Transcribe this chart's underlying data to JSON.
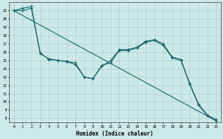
{
  "xlabel": "Humidex (Indice chaleur)",
  "x_ticks": [
    0,
    1,
    2,
    3,
    4,
    5,
    6,
    7,
    8,
    9,
    10,
    11,
    12,
    13,
    14,
    15,
    16,
    17,
    18,
    19,
    20,
    21,
    22,
    23
  ],
  "ylim": [
    7.5,
    22.0
  ],
  "xlim": [
    -0.5,
    23.5
  ],
  "yticks": [
    8,
    9,
    10,
    11,
    12,
    13,
    14,
    15,
    16,
    17,
    18,
    19,
    20,
    21
  ],
  "bg_color": "#cce8e8",
  "grid_color": "#b0cccc",
  "line_color": "#1a6b6b",
  "line1_x": [
    0,
    23
  ],
  "line1_y": [
    21.0,
    7.7
  ],
  "line2_x": [
    0,
    1,
    2,
    3,
    4,
    5,
    6,
    7,
    8,
    9,
    10,
    11,
    12,
    13,
    14,
    15,
    16,
    17,
    18,
    19,
    20,
    21,
    22,
    23
  ],
  "line2_y": [
    21.0,
    21.3,
    21.5,
    15.8,
    15.2,
    15.0,
    14.9,
    14.7,
    13.0,
    12.8,
    14.4,
    14.7,
    16.2,
    16.2,
    16.5,
    17.2,
    17.4,
    16.8,
    15.3,
    15.0,
    12.1,
    9.6,
    8.3,
    7.7
  ],
  "line3_x": [
    0,
    1,
    2,
    3,
    4,
    5,
    6,
    7,
    8,
    9,
    10,
    11,
    12,
    13,
    14,
    15,
    16,
    17,
    18,
    19,
    20,
    21,
    22,
    23
  ],
  "line3_y": [
    21.0,
    21.0,
    21.3,
    15.9,
    15.1,
    15.0,
    14.85,
    14.5,
    13.0,
    12.8,
    14.3,
    15.0,
    16.3,
    16.3,
    16.6,
    17.3,
    17.5,
    17.0,
    15.4,
    15.1,
    12.2,
    9.7,
    8.4,
    7.85
  ]
}
